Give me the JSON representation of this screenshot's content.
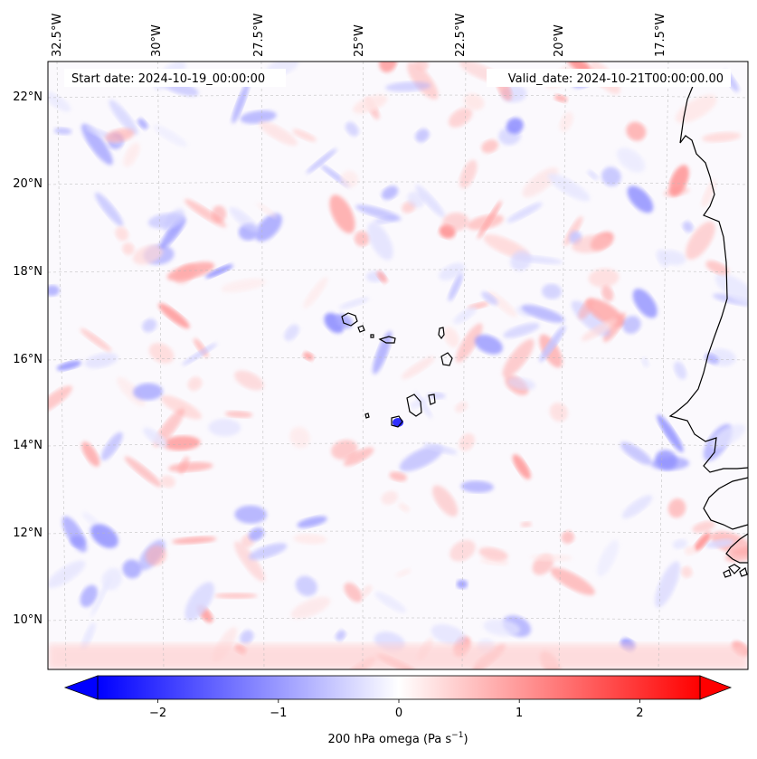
{
  "map": {
    "start_date": "Start date: 2024-10-19_00:00:00",
    "valid_date": "Valid_date: 2024-10-21T00:00:00.00",
    "lon_labels": [
      "32.5°W",
      "30°W",
      "27.5°W",
      "25°W",
      "22.5°W",
      "20°W",
      "17.5°W"
    ],
    "lat_labels": [
      "22°N",
      "20°N",
      "18°N",
      "16°N",
      "14°N",
      "12°N",
      "10°N"
    ],
    "field": "200 hPa omega",
    "colormap": "bwr",
    "gridlines": true,
    "coastline_color": "#000000"
  },
  "colorbar": {
    "label_main": "200 hPa omega (Pa s",
    "label_sup": "−1",
    "label_close": ")",
    "ticks": [
      "−2",
      "−1",
      "0",
      "1",
      "2"
    ],
    "tick_values": [
      -2,
      -1,
      0,
      1,
      2
    ],
    "vmin": -2.5,
    "vmax": 2.5,
    "extend": "both",
    "colors": {
      "min": "#0000ff",
      "mid": "#ffffff",
      "max": "#ff0000"
    }
  }
}
